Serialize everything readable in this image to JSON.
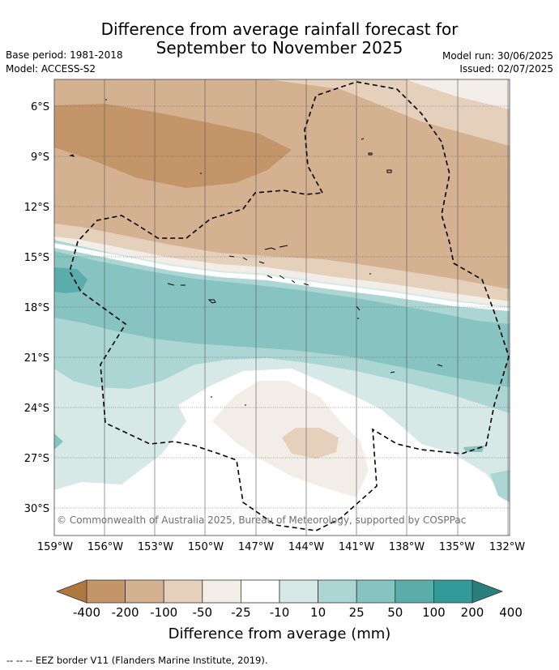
{
  "title": {
    "line1": "Difference from average rainfall forecast for",
    "line2": "September to November 2025"
  },
  "meta": {
    "base_period": "Base period: 1981-2018",
    "model": "Model: ACCESS-S2",
    "model_run": "Model run: 30/06/2025",
    "issued": "Issued: 02/07/2025"
  },
  "map": {
    "lat_labels": [
      "6°S",
      "9°S",
      "12°S",
      "15°S",
      "18°S",
      "21°S",
      "24°S",
      "27°S",
      "30°S"
    ],
    "lon_labels": [
      "159°W",
      "156°W",
      "153°W",
      "150°W",
      "147°W",
      "144°W",
      "141°W",
      "138°W",
      "135°W",
      "132°W"
    ],
    "copyright": "© Commonwealth of Australia 2025, Bureau of Meteorology, supported by COSPPac"
  },
  "legend": {
    "title": "Difference from average (mm)",
    "ticks": [
      "-400",
      "-200",
      "-100",
      "-50",
      "-25",
      "-10",
      "10",
      "25",
      "50",
      "100",
      "200",
      "400"
    ],
    "colors": [
      "#b07840",
      "#c49568",
      "#d3b191",
      "#e5d0bc",
      "#f2eee7",
      "#ffffff",
      "#d6e9e7",
      "#acd6d4",
      "#86c3c1",
      "#5aadab",
      "#329a98",
      "#2a7e7c"
    ]
  },
  "footer": "--  --  -- EEZ border V11 (Flanders Marine Institute, 2019)."
}
